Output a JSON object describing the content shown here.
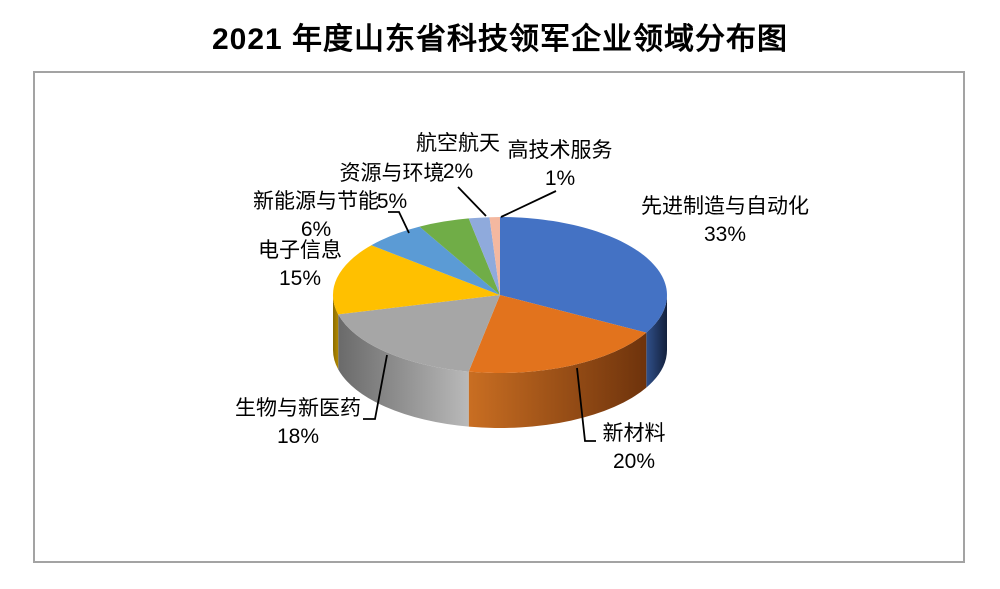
{
  "chart_data": {
    "type": "pie",
    "style": "3d",
    "title": "2021 年度山东省科技领军企业领域分布图",
    "unit": "%",
    "direction": "clockwise",
    "start_angle_deg": 0,
    "legend": "none",
    "data_labels": "category name + percent with leader lines",
    "categories": [
      "先进制造与自动化",
      "新材料",
      "生物与新医药",
      "电子信息",
      "新能源与节能",
      "资源与环境",
      "航空航天",
      "高技术服务"
    ],
    "values": [
      33,
      20,
      18,
      15,
      6,
      5,
      2,
      1
    ],
    "value_labels": [
      "33%",
      "20%",
      "18%",
      "15%",
      "6%",
      "5%",
      "2%",
      "1%"
    ],
    "colors": [
      "#4472C4",
      "#E2731D",
      "#A6A6A6",
      "#FFC000",
      "#5B9BD5",
      "#70AD47",
      "#8FAADC",
      "#F4B8A0"
    ],
    "side_colors": [
      {
        "from": "#30508A",
        "to": "#13203C"
      },
      {
        "from": "#C96E22",
        "to": "#6E330C"
      },
      {
        "from": "#6A6A6A",
        "to": "#B9B9B9"
      },
      {
        "from": "#8A6C00",
        "to": "#B38900"
      }
    ],
    "frame_border_color": "#A3A3A3",
    "leader_line_color": "#000000"
  }
}
